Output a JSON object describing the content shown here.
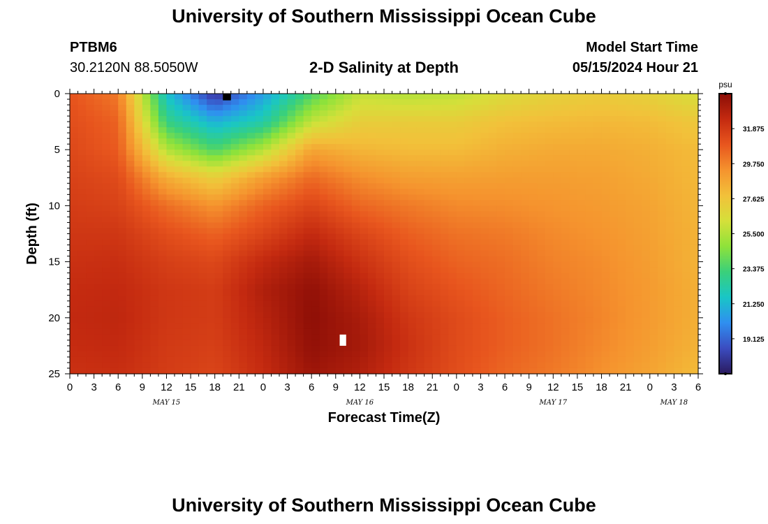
{
  "header": {
    "title": "University of Southern Mississippi Ocean Cube",
    "station_id": "PTBM6",
    "station_coords": "30.2120N  88.5050W",
    "plot_title": "2-D Salinity at Depth",
    "model_start_label": "Model Start Time",
    "model_start_value": "05/15/2024 Hour 21"
  },
  "footer": {
    "title": "University of Southern Mississippi Ocean Cube"
  },
  "colors": {
    "colormap": [
      "#2a1a5e",
      "#3b4cc0",
      "#2f8ff0",
      "#19c6c6",
      "#3ad07a",
      "#8fe23a",
      "#d5e03a",
      "#f2c13a",
      "#f5932e",
      "#e8561e",
      "#c42a10",
      "#8b0d06"
    ],
    "missing_cell": "#ffffff",
    "min_marker": "#000000"
  },
  "chart_data": {
    "type": "heatmap",
    "title": "2-D Salinity at Depth",
    "xlabel": "Forecast Time(Z)",
    "ylabel": "Depth (ft)",
    "x_ticks": [
      "0",
      "3",
      "6",
      "9",
      "12",
      "15",
      "18",
      "21",
      "0",
      "3",
      "6",
      "9",
      "12",
      "15",
      "18",
      "21",
      "0",
      "3",
      "6",
      "9",
      "12",
      "15",
      "18",
      "21",
      "0",
      "3",
      "6"
    ],
    "date_labels": [
      {
        "label": "MAY 15",
        "hour": 12
      },
      {
        "label": "MAY 16",
        "hour": 36
      },
      {
        "label": "MAY 17",
        "hour": 60
      },
      {
        "label": "MAY 18",
        "hour": 75
      }
    ],
    "xlim_hours": [
      0,
      78
    ],
    "ylim_ft": [
      0,
      25
    ],
    "y_ticks": [
      0,
      5,
      10,
      15,
      20,
      25
    ],
    "colorbar": {
      "unit": "psu",
      "range": [
        17.0,
        34.0
      ],
      "ticks": [
        "31.875",
        "29.750",
        "27.625",
        "25.500",
        "23.375",
        "21.250",
        "19.125"
      ]
    },
    "salinity_grid_psu": {
      "x_hours": [
        0,
        6,
        12,
        18,
        24,
        30,
        36,
        42,
        48,
        54,
        60,
        66,
        72,
        78
      ],
      "depths_ft": [
        0,
        2.5,
        5,
        7.5,
        10,
        12.5,
        15,
        17.5,
        20,
        22.5,
        25
      ],
      "values": [
        [
          31.0,
          30.0,
          21.5,
          17.8,
          20.5,
          23.5,
          25.8,
          25.5,
          25.7,
          26.5,
          27.0,
          27.3,
          27.0,
          26.3
        ],
        [
          31.2,
          30.6,
          23.0,
          21.0,
          22.2,
          25.8,
          27.2,
          27.3,
          27.3,
          27.8,
          28.0,
          28.1,
          28.0,
          27.5
        ],
        [
          31.4,
          30.8,
          25.5,
          23.5,
          25.5,
          28.8,
          28.2,
          28.0,
          28.0,
          28.4,
          28.6,
          28.6,
          28.4,
          28.0
        ],
        [
          31.6,
          31.3,
          28.5,
          27.2,
          29.0,
          30.4,
          29.5,
          29.0,
          28.9,
          29.0,
          29.0,
          28.9,
          28.6,
          28.1
        ],
        [
          31.8,
          31.6,
          30.3,
          29.3,
          30.6,
          31.5,
          30.5,
          30.0,
          29.6,
          29.5,
          29.3,
          29.1,
          28.8,
          28.2
        ],
        [
          32.0,
          32.0,
          31.2,
          30.6,
          31.5,
          32.5,
          31.5,
          30.7,
          30.2,
          30.0,
          29.6,
          29.3,
          28.9,
          28.3
        ],
        [
          32.2,
          32.3,
          31.7,
          31.4,
          32.5,
          33.3,
          32.2,
          31.2,
          30.6,
          30.3,
          29.8,
          29.5,
          29.0,
          28.3
        ],
        [
          32.4,
          32.5,
          32.0,
          31.8,
          33.0,
          33.8,
          32.8,
          31.6,
          31.0,
          30.5,
          30.0,
          29.6,
          29.1,
          28.4
        ],
        [
          32.5,
          32.6,
          32.0,
          31.8,
          32.8,
          33.9,
          33.2,
          32.0,
          31.3,
          30.7,
          30.2,
          29.7,
          29.1,
          28.4
        ],
        [
          32.4,
          32.5,
          31.9,
          31.7,
          32.6,
          33.8,
          33.3,
          32.2,
          31.3,
          30.7,
          30.2,
          29.6,
          29.0,
          28.3
        ],
        [
          32.2,
          32.3,
          31.8,
          31.5,
          32.4,
          33.5,
          33.0,
          32.0,
          31.2,
          30.5,
          30.0,
          29.4,
          28.8,
          28.0
        ]
      ]
    }
  }
}
